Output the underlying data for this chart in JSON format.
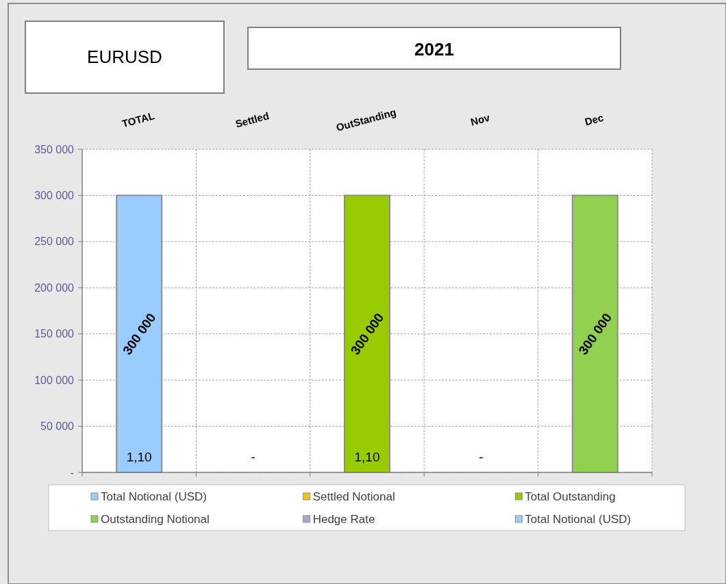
{
  "chart_data": {
    "type": "bar",
    "title": "2021",
    "subtitle": "EURUSD",
    "categories": [
      "TOTAL",
      "Settled",
      "OutStanding",
      "Nov",
      "Dec"
    ],
    "series": [
      {
        "name": "Total Notional (USD)",
        "color": "#99ccff",
        "values": [
          300000,
          null,
          null,
          null,
          null
        ],
        "value_labels": [
          "300 000",
          null,
          null,
          null,
          null
        ]
      },
      {
        "name": "Settled Notional",
        "color": "#ffc000",
        "values": [
          null,
          null,
          null,
          null,
          null
        ]
      },
      {
        "name": "Total Outstanding",
        "color": "#99cc00",
        "values": [
          null,
          null,
          300000,
          null,
          null
        ],
        "value_labels": [
          null,
          null,
          "300 000",
          null,
          null
        ]
      },
      {
        "name": "Outstanding Notional",
        "color": "#92d050",
        "values": [
          null,
          null,
          null,
          null,
          300000
        ],
        "value_labels": [
          null,
          null,
          null,
          null,
          "300 000"
        ]
      },
      {
        "name": "Hedge Rate",
        "color": "#b2a1c7",
        "values": [
          null,
          null,
          null,
          null,
          null
        ],
        "value_labels": [
          "1,10",
          "-",
          "1,10",
          "-",
          null
        ]
      },
      {
        "name": "Total Notional (USD)",
        "color": "#99ccff",
        "values": [
          null,
          null,
          null,
          null,
          null
        ]
      }
    ],
    "ylim": [
      0,
      350000
    ],
    "yticks": [
      {
        "value": 0,
        "label": "-"
      },
      {
        "value": 50000,
        "label": "50 000"
      },
      {
        "value": 100000,
        "label": "100 000"
      },
      {
        "value": 150000,
        "label": "150 000"
      },
      {
        "value": 200000,
        "label": "200 000"
      },
      {
        "value": 250000,
        "label": "250 000"
      },
      {
        "value": 300000,
        "label": "300 000"
      },
      {
        "value": 350000,
        "label": "350 000"
      }
    ],
    "grid": true,
    "legend": "bottom"
  }
}
